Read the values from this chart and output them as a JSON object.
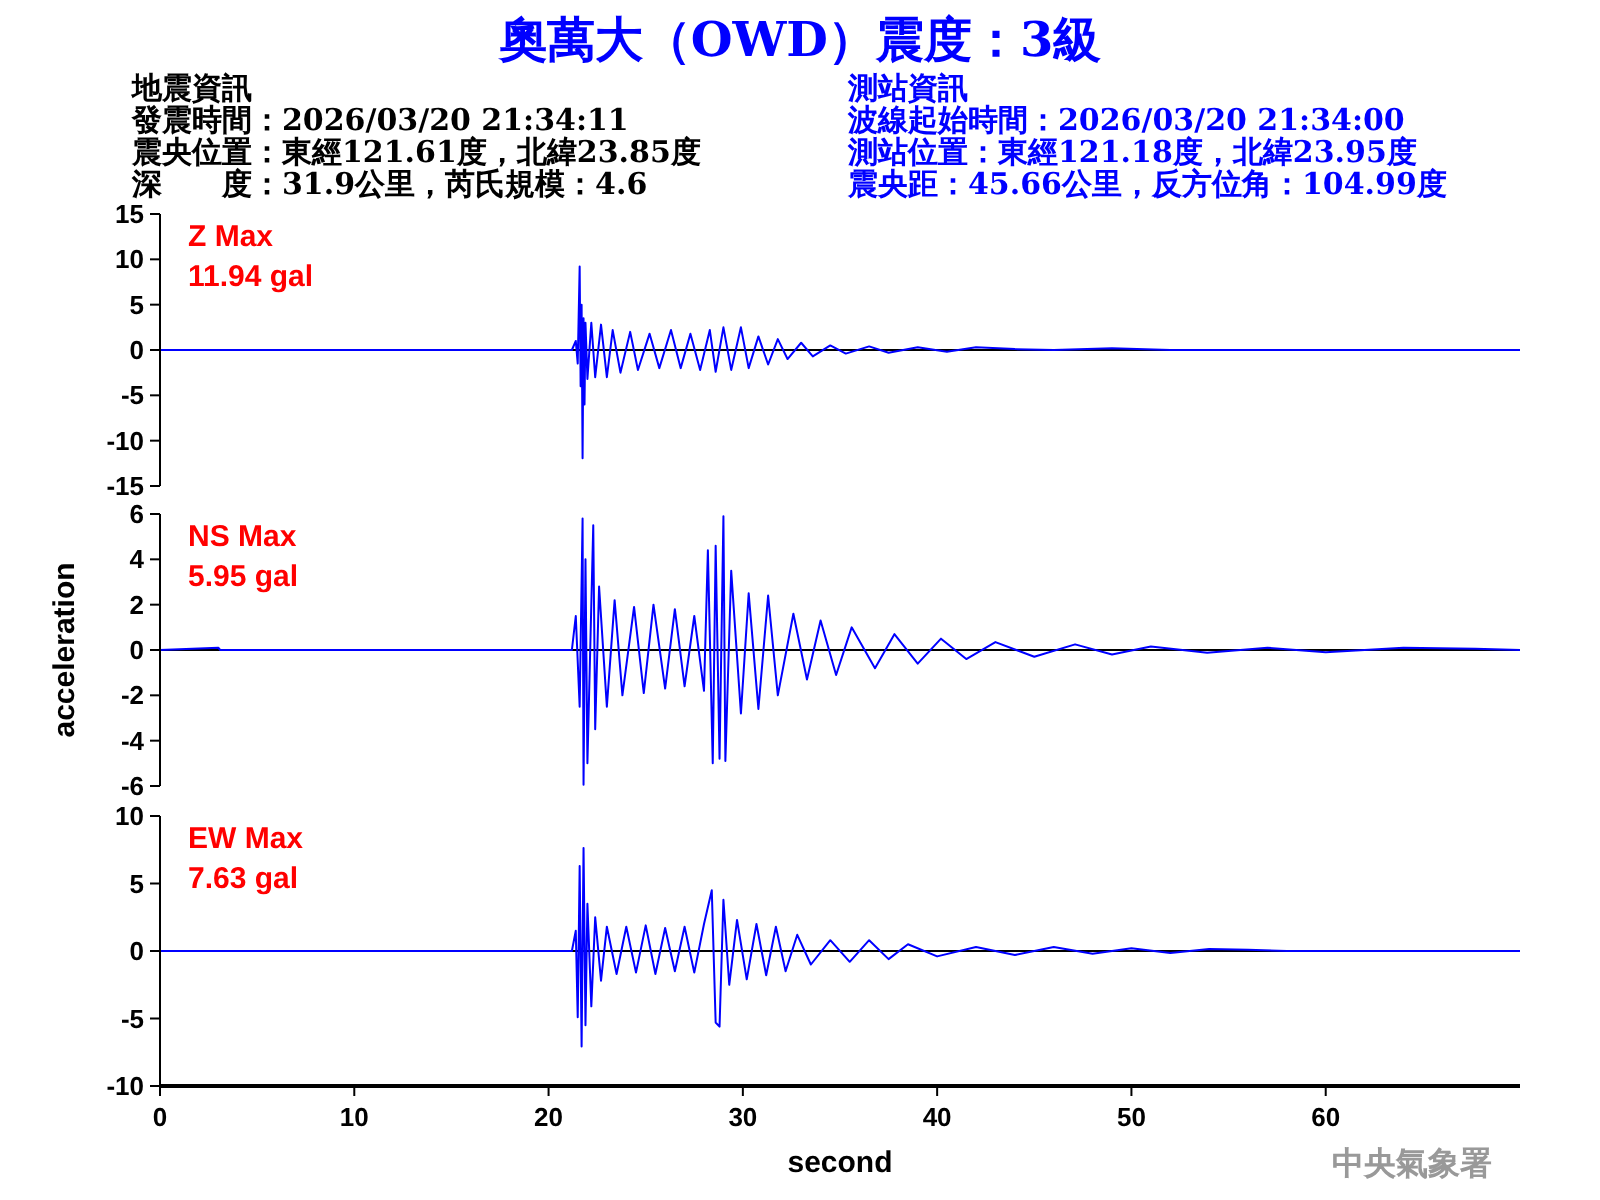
{
  "chart_data": [
    {
      "type": "line",
      "title": "奧萬大（OWD）震度：3級",
      "annotations": [
        "地震資訊",
        "發震時間：2026/03/20 21:34:11",
        "震央位置：東經121.61度，北緯23.85度",
        "深　　度：31.9公里，芮氏規模：4.6",
        "測站資訊",
        "波線起始時間：2026/03/20 21:34:00",
        "測站位置：東經121.18度，北緯23.95度",
        "震央距：45.66公里，反方位角：104.99度",
        "Z Max",
        "11.94 gal"
      ],
      "xlim": [
        0,
        70
      ],
      "ylim": [
        -15,
        15
      ],
      "yticks": [
        15,
        10,
        5,
        0,
        -5,
        -10,
        -15
      ],
      "tick_labels": "y",
      "ref_lines": [
        {
          "axis": "y",
          "value": 0,
          "color": "#000000"
        }
      ],
      "series": [
        {
          "color": "#0000ff",
          "x": [
            0,
            21.2,
            21.4,
            21.5,
            21.6,
            21.65,
            21.7,
            21.75,
            21.8,
            21.85,
            21.9,
            22.0,
            22.2,
            22.4,
            22.7,
            23.0,
            23.3,
            23.7,
            24.2,
            24.6,
            25.2,
            25.7,
            26.3,
            26.8,
            27.3,
            27.8,
            28.3,
            28.6,
            29.0,
            29.4,
            29.9,
            30.3,
            30.8,
            31.3,
            31.8,
            32.3,
            33.0,
            33.6,
            34.5,
            35.3,
            36.5,
            37.5,
            39.0,
            40.5,
            42.0,
            44.0,
            46.0,
            49.0,
            52.0,
            58.0,
            70.0
          ],
          "values": [
            0,
            0,
            1,
            -1.5,
            9.2,
            -4,
            5,
            -11.94,
            3.5,
            -6,
            3,
            -3.2,
            3,
            -3,
            2.8,
            -3,
            2.2,
            -2.5,
            2,
            -2.2,
            1.8,
            -2,
            2.2,
            -2,
            1.8,
            -2.2,
            2.2,
            -2.4,
            2.5,
            -2.2,
            2.5,
            -2,
            1.5,
            -1.6,
            1.2,
            -1,
            0.8,
            -0.7,
            0.5,
            -0.4,
            0.4,
            -0.3,
            0.3,
            -0.2,
            0.3,
            0.1,
            0,
            0.2,
            0,
            0,
            0
          ]
        }
      ]
    },
    {
      "type": "line",
      "ylabel": "acceleration",
      "annotations": [
        "NS Max",
        "5.95 gal"
      ],
      "xlim": [
        0,
        70
      ],
      "ylim": [
        -6,
        6
      ],
      "yticks": [
        6,
        4,
        2,
        0,
        -2,
        -4,
        -6
      ],
      "tick_labels": "y",
      "ref_lines": [
        {
          "axis": "y",
          "value": 0,
          "color": "#000000"
        }
      ],
      "series": [
        {
          "color": "#0000ff",
          "x": [
            0,
            3.0,
            3.1,
            21.2,
            21.4,
            21.6,
            21.75,
            21.8,
            21.9,
            22.0,
            22.3,
            22.4,
            22.6,
            23.0,
            23.4,
            23.8,
            24.4,
            24.9,
            25.4,
            26.0,
            26.5,
            27.0,
            27.5,
            28.0,
            28.2,
            28.45,
            28.6,
            28.8,
            29.0,
            29.1,
            29.4,
            29.9,
            30.3,
            30.8,
            31.3,
            31.8,
            32.6,
            33.3,
            34.0,
            34.8,
            35.6,
            36.8,
            37.8,
            39.0,
            40.2,
            41.5,
            43.0,
            45.0,
            47.1,
            49.0,
            51.0,
            53.9,
            57.0,
            60.0,
            64.0,
            67.7,
            70.0
          ],
          "values": [
            0,
            0.1,
            0,
            0,
            1.5,
            -2.5,
            5.8,
            -5.95,
            4,
            -5,
            5.5,
            -3.5,
            2.8,
            -2.5,
            2.2,
            -2,
            1.9,
            -1.9,
            2.0,
            -1.7,
            1.8,
            -1.6,
            1.5,
            -1.8,
            4.4,
            -5,
            4.6,
            -4.8,
            5.9,
            -4.9,
            3.5,
            -2.8,
            2.5,
            -2.6,
            2.4,
            -2,
            1.6,
            -1.3,
            1.3,
            -1.1,
            1,
            -0.8,
            0.7,
            -0.6,
            0.5,
            -0.4,
            0.35,
            -0.3,
            0.25,
            -0.2,
            0.15,
            -0.12,
            0.1,
            -0.1,
            0.1,
            0.05,
            0
          ]
        }
      ]
    },
    {
      "type": "line",
      "xlabel": "second",
      "annotations": [
        "EW Max",
        "7.63 gal",
        "中央氣象署"
      ],
      "xlim": [
        0,
        70
      ],
      "xticks": [
        0,
        10,
        20,
        30,
        40,
        50,
        60
      ],
      "ylim": [
        -10,
        10
      ],
      "yticks": [
        10,
        5,
        0,
        -5,
        -10
      ],
      "ref_lines": [
        {
          "axis": "y",
          "value": 0,
          "color": "#000000"
        }
      ],
      "series": [
        {
          "color": "#0000ff",
          "x": [
            0,
            21.2,
            21.4,
            21.5,
            21.6,
            21.7,
            21.8,
            21.9,
            22.0,
            22.2,
            22.4,
            22.7,
            23.0,
            23.5,
            24.0,
            24.5,
            25.0,
            25.5,
            26.0,
            26.5,
            27.0,
            27.5,
            28.0,
            28.4,
            28.6,
            28.8,
            29.0,
            29.3,
            29.7,
            30.2,
            30.7,
            31.2,
            31.7,
            32.2,
            32.8,
            33.5,
            34.5,
            35.5,
            36.5,
            37.5,
            38.5,
            40.0,
            42.0,
            44.0,
            46.0,
            48.0,
            50.0,
            52.0,
            54.0,
            56.0,
            58.0,
            70.0
          ],
          "values": [
            0,
            0,
            1.5,
            -4.9,
            6.3,
            -7.07,
            7.63,
            -5.5,
            3.5,
            -4.1,
            2.5,
            -2.2,
            1.8,
            -1.7,
            1.8,
            -1.6,
            1.9,
            -1.7,
            1.7,
            -1.5,
            1.8,
            -1.6,
            2.0,
            4.5,
            -5.3,
            -5.6,
            3.8,
            -2.5,
            2.3,
            -2.1,
            2.0,
            -1.8,
            1.8,
            -1.5,
            1.2,
            -1.0,
            0.8,
            -0.8,
            0.8,
            -0.6,
            0.5,
            -0.4,
            0.3,
            -0.3,
            0.3,
            -0.2,
            0.2,
            -0.15,
            0.15,
            0.1,
            0,
            0
          ]
        }
      ]
    }
  ]
}
